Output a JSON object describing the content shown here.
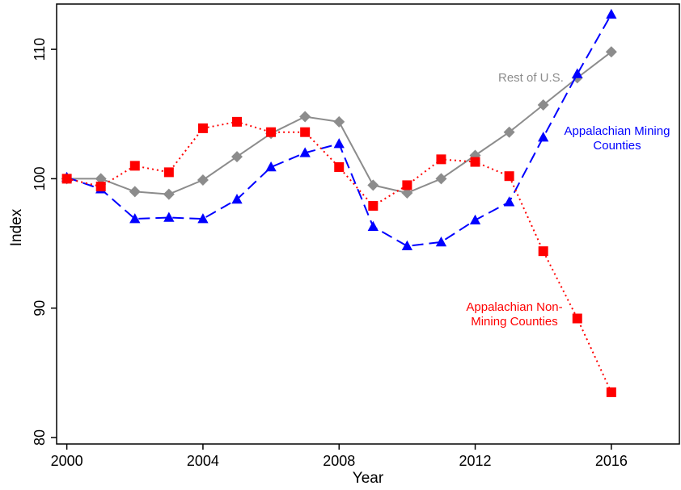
{
  "chart_data": {
    "type": "line",
    "title": "",
    "xlabel": "Year",
    "ylabel": "Index",
    "xlim": [
      1999.7,
      2018.0
    ],
    "ylim": [
      79.5,
      113.5
    ],
    "xticks": [
      2000,
      2004,
      2008,
      2012,
      2016
    ],
    "yticks": [
      80,
      90,
      100,
      110
    ],
    "grid": false,
    "legend": "none",
    "x": [
      2000,
      2001,
      2002,
      2003,
      2004,
      2005,
      2006,
      2007,
      2008,
      2009,
      2010,
      2011,
      2012,
      2013,
      2014,
      2015,
      2016
    ],
    "series": [
      {
        "name": "Rest of U.S.",
        "color": "#8c8c8c",
        "line": "solid",
        "marker": "diamond",
        "values": [
          100.0,
          100.0,
          99.0,
          98.8,
          99.9,
          101.7,
          103.5,
          104.8,
          104.4,
          99.5,
          98.9,
          100.0,
          101.8,
          103.6,
          105.7,
          107.8,
          109.8
        ]
      },
      {
        "name": "Appalachian Mining Counties",
        "color": "#0000ff",
        "line": "dashed",
        "marker": "triangle",
        "values": [
          100.1,
          99.2,
          96.9,
          97.0,
          96.9,
          98.4,
          100.9,
          102.0,
          102.7,
          96.3,
          94.8,
          95.1,
          96.8,
          98.2,
          103.2,
          108.1,
          112.7
        ]
      },
      {
        "name": "Appalachian Non-Mining Counties",
        "color": "#ff0000",
        "line": "dotted",
        "marker": "square",
        "values": [
          100.0,
          99.4,
          101.0,
          100.5,
          103.9,
          104.4,
          103.6,
          103.6,
          100.9,
          97.9,
          99.5,
          101.5,
          101.3,
          100.2,
          94.4,
          89.2,
          83.5
        ]
      }
    ],
    "annotations": [
      {
        "lines": [
          "Rest of U.S."
        ],
        "color": "#8c8c8c"
      },
      {
        "lines": [
          "Appalachian Mining",
          "Counties"
        ],
        "color": "#0000ff"
      },
      {
        "lines": [
          "Appalachian Non-",
          "Mining Counties"
        ],
        "color": "#ff0000"
      }
    ]
  }
}
